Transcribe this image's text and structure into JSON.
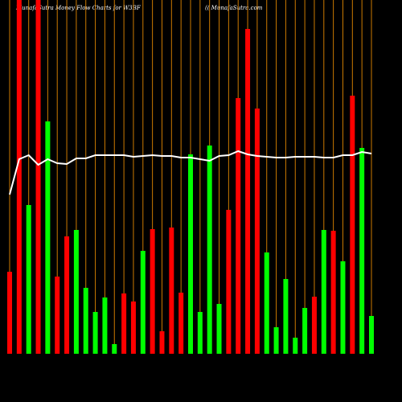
{
  "chart_data": {
    "type": "bar",
    "title": "MunafaSutra  Money Flow  Charts for W3BF",
    "subtitle": "(( MunafaSutra.com",
    "values": [
      102,
      440,
      185,
      440,
      289,
      96,
      146,
      154,
      82,
      52,
      70,
      12,
      75,
      65,
      128,
      155,
      28,
      157,
      76,
      248,
      52,
      259,
      62,
      179,
      318,
      404,
      305,
      126,
      33,
      93,
      20,
      57,
      71,
      154,
      153,
      115,
      321,
      256,
      47
    ],
    "colors": [
      "#ff0000",
      "#ff0000",
      "#00ff00",
      "#ff0000",
      "#00ff00",
      "#ff0000",
      "#ff0000",
      "#00ff00",
      "#00ff00",
      "#00ff00",
      "#00ff00",
      "#00ff00",
      "#ff0000",
      "#ff0000",
      "#00ff00",
      "#ff0000",
      "#ff0000",
      "#ff0000",
      "#ff0000",
      "#00ff00",
      "#00ff00",
      "#00ff00",
      "#00ff00",
      "#ff0000",
      "#ff0000",
      "#ff0000",
      "#ff0000",
      "#00ff00",
      "#00ff00",
      "#00ff00",
      "#00ff00",
      "#00ff00",
      "#ff0000",
      "#00ff00",
      "#ff0000",
      "#00ff00",
      "#ff0000",
      "#00ff00",
      "#00ff00"
    ],
    "line_values": [
      198,
      242,
      247,
      235,
      242,
      237,
      236,
      243,
      243,
      247,
      247,
      247,
      247,
      245,
      246,
      247,
      246,
      246,
      244,
      244,
      242,
      240,
      246,
      247,
      252,
      248,
      246,
      245,
      244,
      244,
      245,
      245,
      245,
      244,
      244,
      247,
      247,
      251,
      249
    ],
    "line_color": "#ffffff",
    "grid_color": "#cc7a00",
    "ylim": [
      0,
      440
    ],
    "grid": true
  }
}
